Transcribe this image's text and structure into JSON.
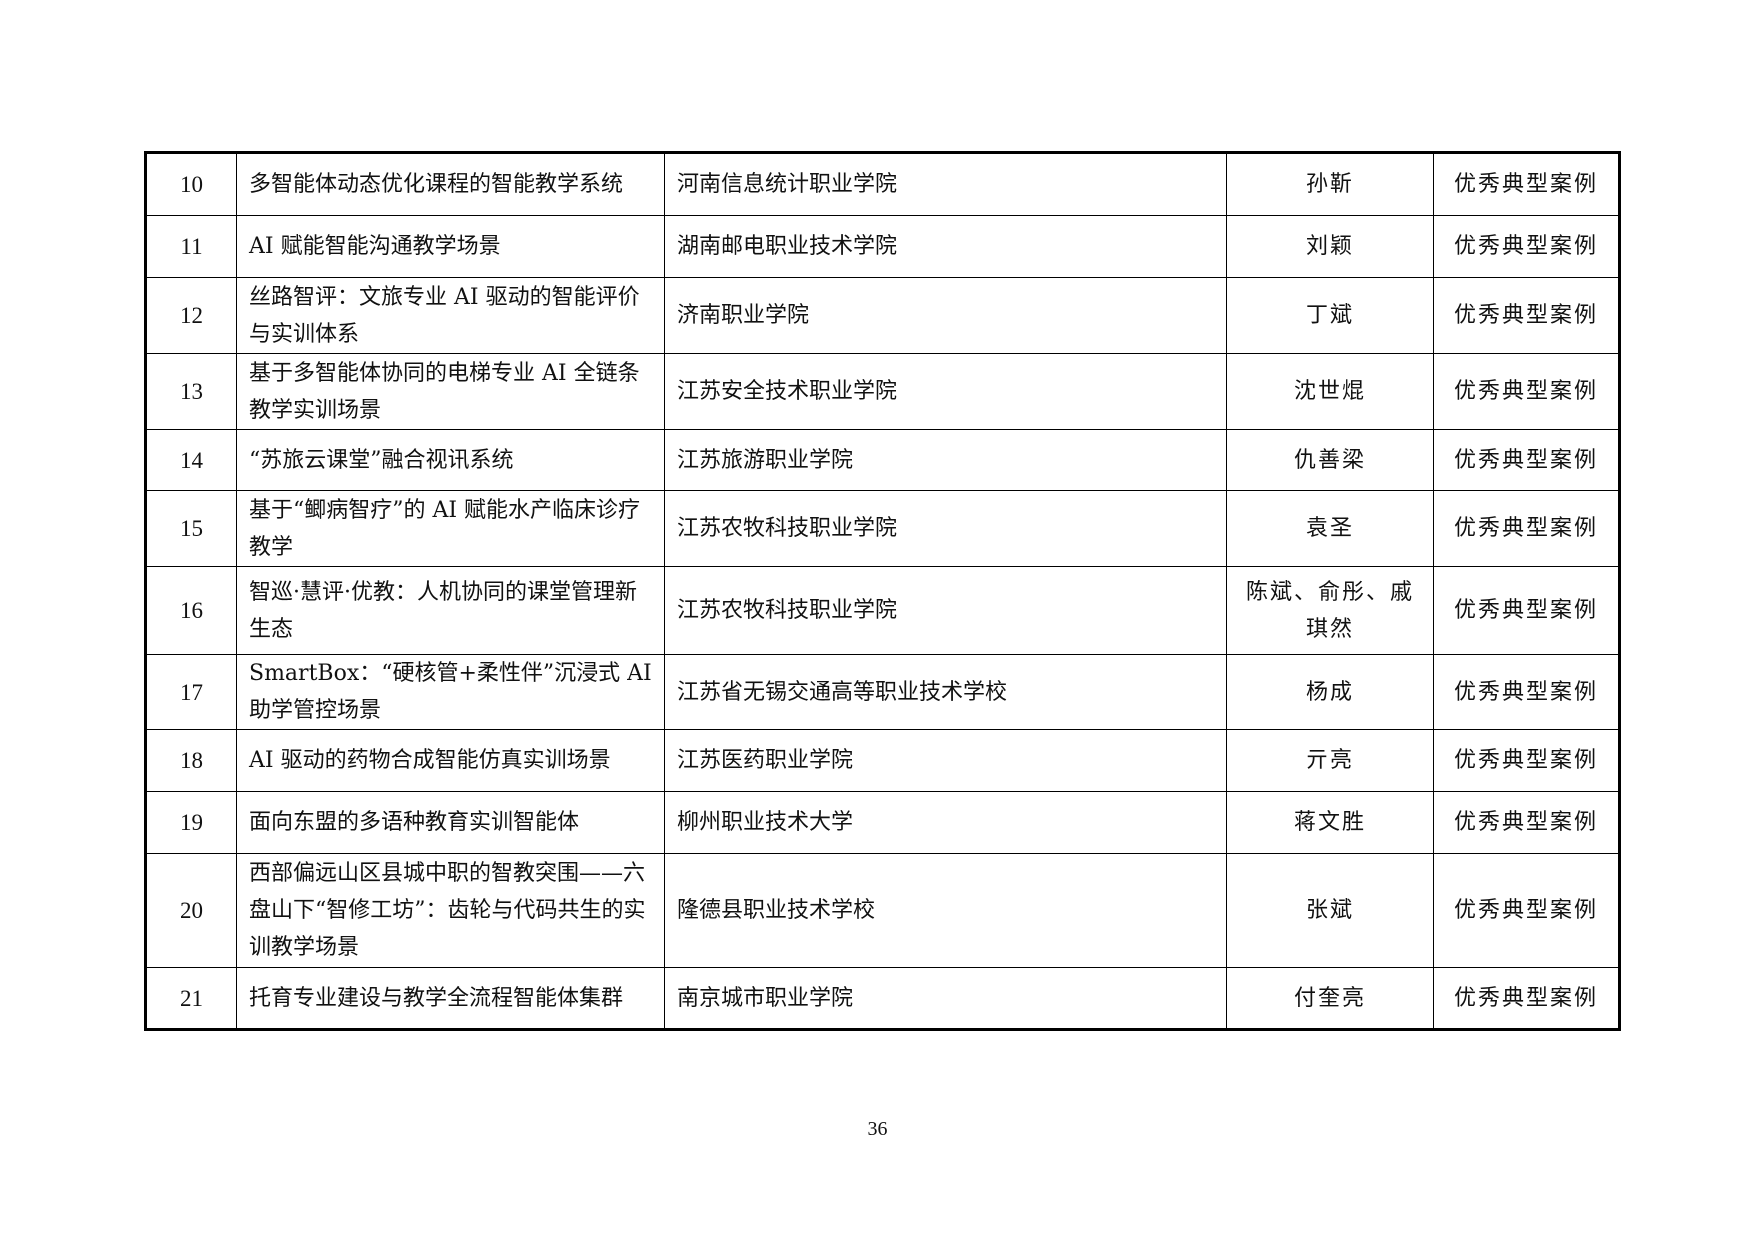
{
  "rows": [
    {
      "no": "10",
      "title": "多智能体动态优化课程的智能教学系统",
      "school": "河南信息统计职业学院",
      "person": "孙靳",
      "award": "优秀典型案例"
    },
    {
      "no": "11",
      "title": "AI 赋能智能沟通教学场景",
      "school": "湖南邮电职业技术学院",
      "person": "刘颖",
      "award": "优秀典型案例"
    },
    {
      "no": "12",
      "title": "丝路智评：文旅专业 AI 驱动的智能评价与实训体系",
      "school": "济南职业学院",
      "person": "丁斌",
      "award": "优秀典型案例"
    },
    {
      "no": "13",
      "title": "基于多智能体协同的电梯专业 AI 全链条教学实训场景",
      "school": "江苏安全技术职业学院",
      "person": "沈世焜",
      "award": "优秀典型案例"
    },
    {
      "no": "14",
      "title": "“苏旅云课堂”融合视讯系统",
      "school": "江苏旅游职业学院",
      "person": "仇善梁",
      "award": "优秀典型案例"
    },
    {
      "no": "15",
      "title": "基于“鲫病智疗”的 AI 赋能水产临床诊疗教学",
      "school": "江苏农牧科技职业学院",
      "person": "袁圣",
      "award": "优秀典型案例"
    },
    {
      "no": "16",
      "title": "智巡·慧评·优教：人机协同的课堂管理新生态",
      "school": "江苏农牧科技职业学院",
      "person": "陈斌、俞彤、戚琪然",
      "award": "优秀典型案例"
    },
    {
      "no": "17",
      "title": "SmartBox：“硬核管+柔性伴”沉浸式 AI 助学管控场景",
      "school": "江苏省无锡交通高等职业技术学校",
      "person": "杨成",
      "award": "优秀典型案例"
    },
    {
      "no": "18",
      "title": "AI 驱动的药物合成智能仿真实训场景",
      "school": "江苏医药职业学院",
      "person": "亓亮",
      "award": "优秀典型案例"
    },
    {
      "no": "19",
      "title": "面向东盟的多语种教育实训智能体",
      "school": "柳州职业技术大学",
      "person": "蒋文胜",
      "award": "优秀典型案例"
    },
    {
      "no": "20",
      "title": "西部偏远山区县城中职的智教突围——六盘山下“智修工坊”：齿轮与代码共生的实训教学场景",
      "school": "隆德县职业技术学校",
      "person": "张斌",
      "award": "优秀典型案例"
    },
    {
      "no": "21",
      "title": "托育专业建设与教学全流程智能体集群",
      "school": "南京城市职业学院",
      "person": "付奎亮",
      "award": "优秀典型案例"
    }
  ],
  "page_number": "36"
}
